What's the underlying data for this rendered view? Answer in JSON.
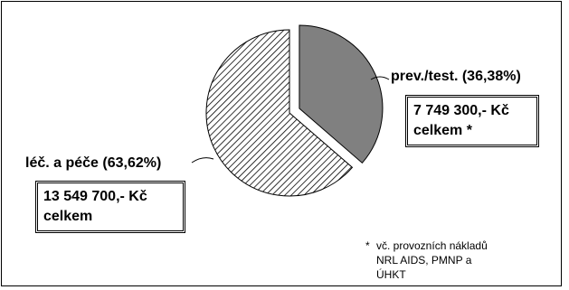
{
  "chart_data": {
    "type": "pie",
    "slices": [
      {
        "label": "prev./test. (36,38%)",
        "value": 36.38,
        "total_line1": "7 749 300,- Kč",
        "total_line2": "celkem *",
        "fill": "gray",
        "exploded": true
      },
      {
        "label": "léč. a péče (63,62%)",
        "value": 63.62,
        "total_line1": "13 549 700,- Kč",
        "total_line2": "celkem",
        "fill": "hatched",
        "exploded": false
      }
    ],
    "colors": {
      "gray": "#808080",
      "hatch": "#000000",
      "background": "#ffffff"
    }
  },
  "footnote": {
    "marker": "*",
    "line1": "vč. provozních nákladů",
    "line2": "NRL AIDS, PMNP a",
    "line3": "ÚHKT"
  }
}
